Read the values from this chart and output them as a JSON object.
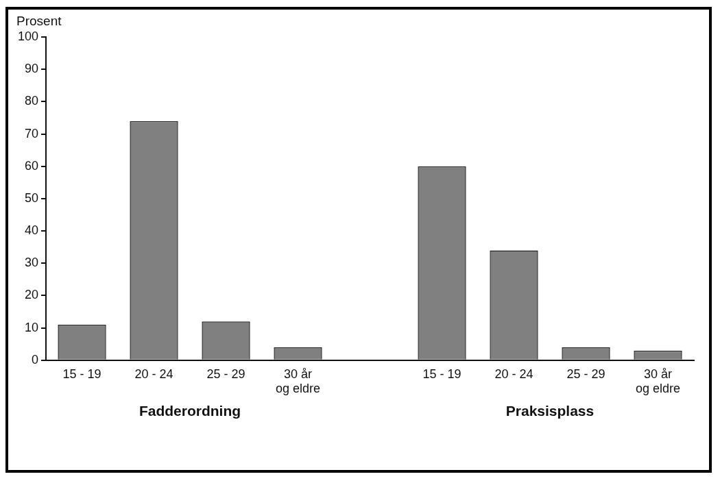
{
  "chart_data": {
    "type": "bar",
    "ylabel": "Prosent",
    "categories": [
      "15 - 19",
      "20 - 24",
      "25 - 29",
      "30 år\nog eldre",
      null,
      "15 - 19",
      "20 - 24",
      "25 - 29",
      "30 år\nog eldre"
    ],
    "values": [
      11,
      74,
      12,
      4,
      null,
      60,
      34,
      4,
      3
    ],
    "color": "#808080",
    "ylim": [
      0,
      100
    ],
    "yticks": [
      0,
      10,
      20,
      30,
      40,
      50,
      60,
      70,
      80,
      90,
      100
    ],
    "annotations": [
      "Fadderordning",
      "Praksisplass"
    ]
  }
}
